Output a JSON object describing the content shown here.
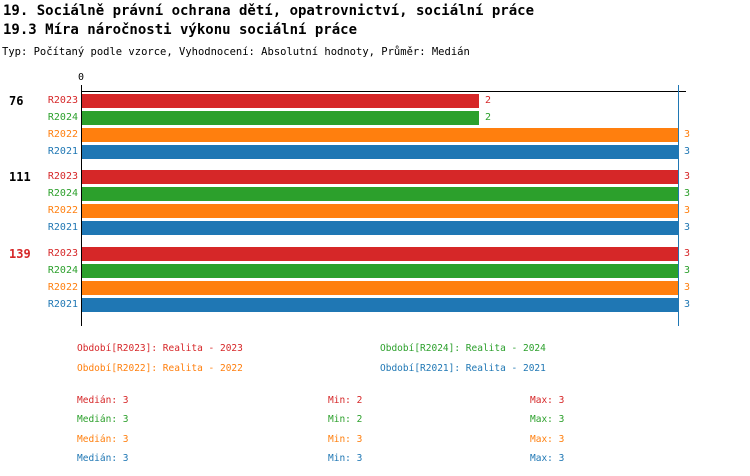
{
  "header": {
    "title": "19. Sociálně právní ochrana dětí, opatrovnictví, sociální práce",
    "subtitle": "19.3 Míra náročnosti výkonu sociální práce",
    "meta": "Typ: Počítaný podle vzorce, Vyhodnocení: Absolutní hodnoty, Průměr: Medián"
  },
  "chart_data": {
    "type": "bar",
    "orientation": "horizontal",
    "categories": [
      "76",
      "111",
      "139"
    ],
    "category_label_colors": [
      "#000000",
      "#000000",
      "#d62728"
    ],
    "series": [
      {
        "name": "R2023",
        "color": "#d62728",
        "values": [
          2,
          3,
          3
        ]
      },
      {
        "name": "R2024",
        "color": "#2ca02c",
        "values": [
          2,
          3,
          3
        ]
      },
      {
        "name": "R2022",
        "color": "#ff7f0e",
        "values": [
          3,
          3,
          3
        ]
      },
      {
        "name": "R2021",
        "color": "#1f77b4",
        "values": [
          3,
          3,
          3
        ]
      }
    ],
    "xlim": [
      0,
      3
    ],
    "x_ticks": [
      {
        "value": 0,
        "label": "0"
      }
    ],
    "value_labels": true,
    "grid": false,
    "median_line": {
      "x": 3,
      "color": "#1f77b4"
    },
    "legend_position": "bottom"
  },
  "legend": {
    "rows": [
      [
        {
          "id": "R2023",
          "text": "Období[R2023]: Realita - 2023",
          "color": "#d62728"
        },
        {
          "id": "R2024",
          "text": "Období[R2024]: Realita - 2024",
          "color": "#2ca02c"
        }
      ],
      [
        {
          "id": "R2022",
          "text": "Období[R2022]: Realita - 2022",
          "color": "#ff7f0e"
        },
        {
          "id": "R2021",
          "text": "Období[R2021]: Realita - 2021",
          "color": "#1f77b4"
        }
      ]
    ]
  },
  "stats": {
    "rows": [
      {
        "id": "R2023",
        "color": "#d62728",
        "median": "Medián: 3",
        "min": "Min: 2",
        "max": "Max: 3"
      },
      {
        "id": "R2024",
        "color": "#2ca02c",
        "median": "Medián: 3",
        "min": "Min: 2",
        "max": "Max: 3"
      },
      {
        "id": "R2022",
        "color": "#ff7f0e",
        "median": "Medián: 3",
        "min": "Min: 3",
        "max": "Max: 3"
      },
      {
        "id": "R2021",
        "color": "#1f77b4",
        "median": "Medián: 3",
        "min": "Min: 3",
        "max": "Max: 3"
      }
    ]
  }
}
